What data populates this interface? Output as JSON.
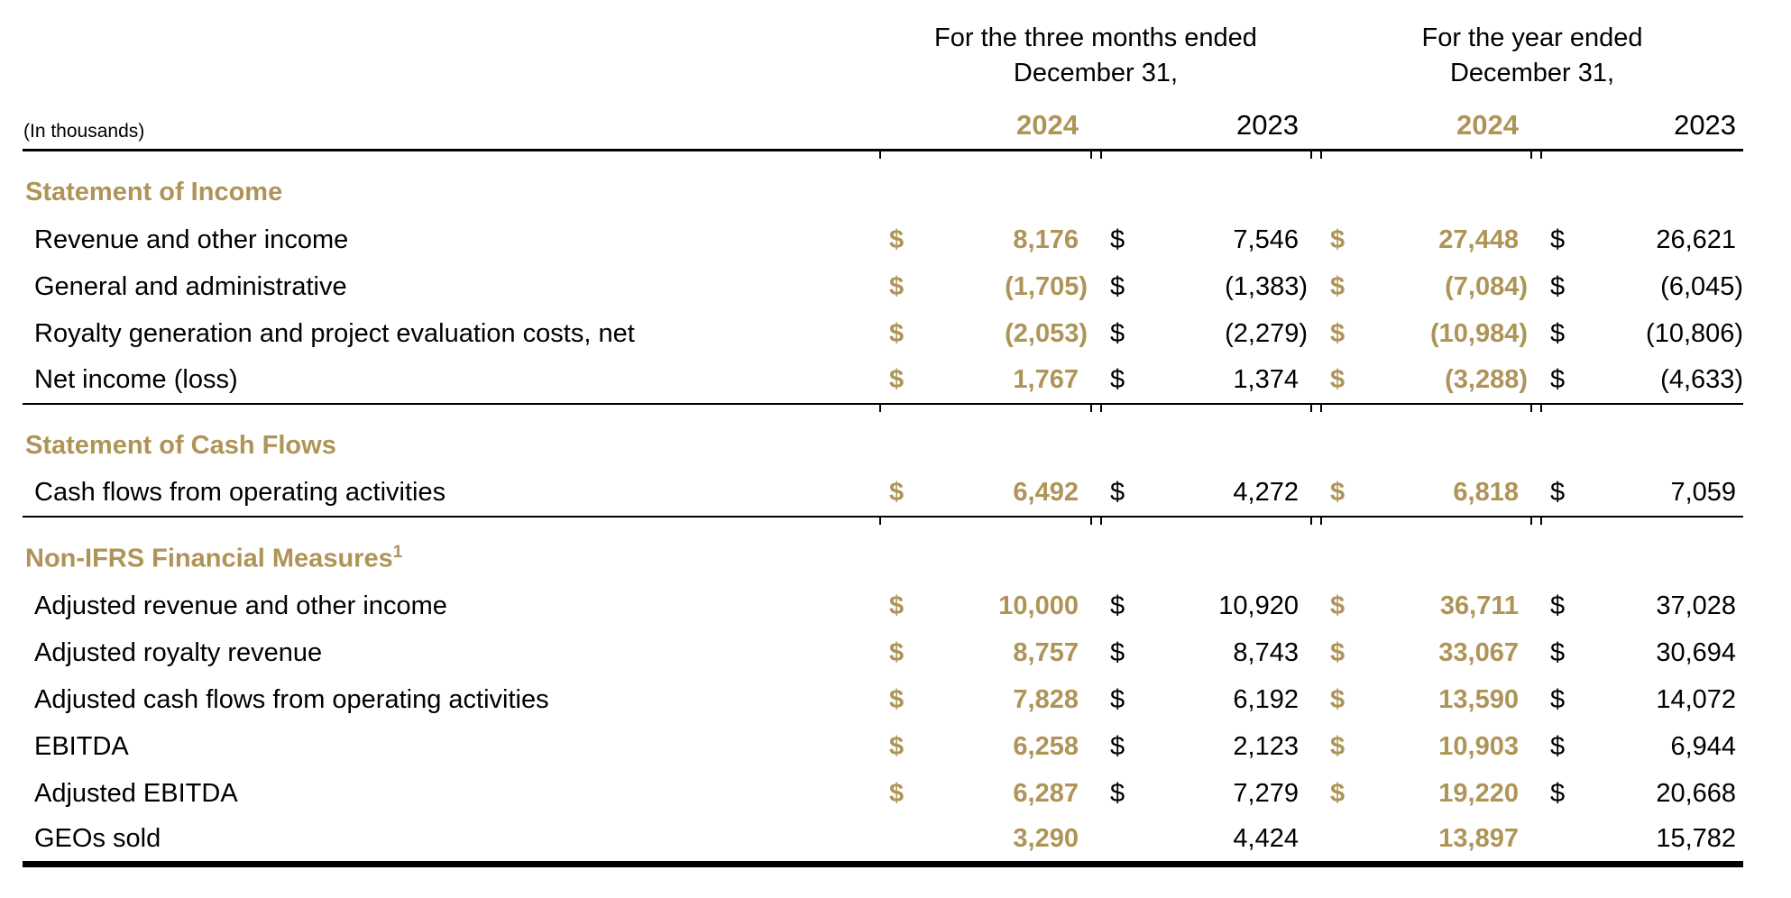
{
  "page": {
    "background": "#ffffff"
  },
  "colors": {
    "gold": "#AE9457",
    "black": "#000000"
  },
  "table": {
    "units_label": "(In thousands)",
    "currency_symbol": "$",
    "col_groups": [
      {
        "title_line1": "For the three months ended",
        "title_line2": "December 31,"
      },
      {
        "title_line1": "For the year ended",
        "title_line2": "December 31,"
      }
    ],
    "year_headers": [
      {
        "label": "2024",
        "emphasis": "gold"
      },
      {
        "label": "2023",
        "emphasis": "black"
      },
      {
        "label": "2024",
        "emphasis": "gold"
      },
      {
        "label": "2023",
        "emphasis": "black"
      }
    ],
    "sections": [
      {
        "heading": "Statement of Income",
        "heading_superscript": "",
        "rows": [
          {
            "label": "Revenue and other income",
            "show_currency": true,
            "values": [
              "8,176",
              "7,546",
              "27,448",
              "26,621"
            ]
          },
          {
            "label": "General and administrative",
            "show_currency": true,
            "values": [
              "(1,705)",
              "(1,383)",
              "(7,084)",
              "(6,045)"
            ]
          },
          {
            "label": "Royalty generation and project evaluation costs, net",
            "show_currency": true,
            "values": [
              "(2,053)",
              "(2,279)",
              "(10,984)",
              "(10,806)"
            ]
          },
          {
            "label": "Net income (loss)",
            "show_currency": true,
            "values": [
              "1,767",
              "1,374",
              "(3,288)",
              "(4,633)"
            ]
          }
        ]
      },
      {
        "heading": "Statement of Cash Flows",
        "heading_superscript": "",
        "rows": [
          {
            "label": "Cash flows from operating activities",
            "show_currency": true,
            "values": [
              "6,492",
              "4,272",
              "6,818",
              "7,059"
            ]
          }
        ]
      },
      {
        "heading": "Non-IFRS Financial Measures",
        "heading_superscript": "1",
        "rows": [
          {
            "label": "Adjusted revenue and other income",
            "show_currency": true,
            "values": [
              "10,000",
              "10,920",
              "36,711",
              "37,028"
            ]
          },
          {
            "label": "Adjusted royalty revenue",
            "show_currency": true,
            "values": [
              "8,757",
              "8,743",
              "33,067",
              "30,694"
            ]
          },
          {
            "label": "Adjusted cash flows from operating activities",
            "show_currency": true,
            "values": [
              "7,828",
              "6,192",
              "13,590",
              "14,072"
            ]
          },
          {
            "label": "EBITDA",
            "show_currency": true,
            "values": [
              "6,258",
              "2,123",
              "10,903",
              "6,944"
            ]
          },
          {
            "label": "Adjusted EBITDA",
            "show_currency": true,
            "values": [
              "6,287",
              "7,279",
              "19,220",
              "20,668"
            ]
          },
          {
            "label": "GEOs sold",
            "show_currency": false,
            "values": [
              "3,290",
              "4,424",
              "13,897",
              "15,782"
            ]
          }
        ]
      }
    ]
  }
}
